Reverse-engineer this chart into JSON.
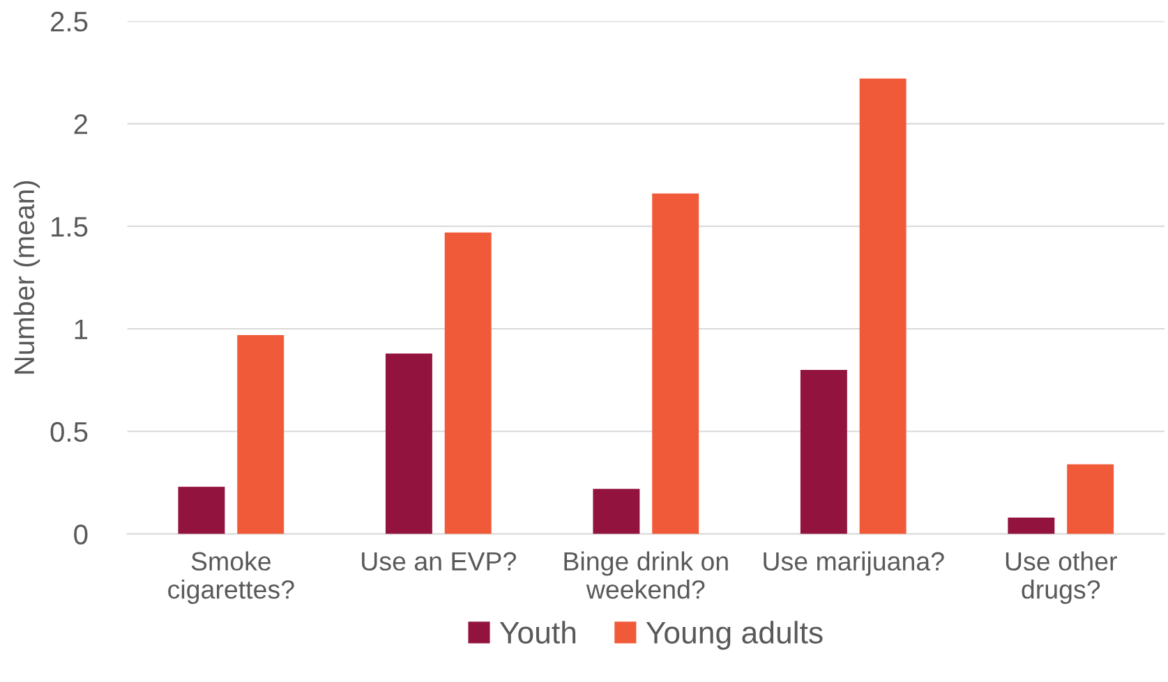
{
  "chart_data": {
    "type": "bar",
    "ylabel": "Number (mean)",
    "categories": [
      "Smoke\ncigarettes?",
      "Use an EVP?",
      "Binge drink on\nweekend?",
      "Use marijuana?",
      "Use other\ndrugs?"
    ],
    "series": [
      {
        "name": "Youth",
        "color": "#93133f",
        "values": [
          0.23,
          0.88,
          0.22,
          0.8,
          0.08
        ]
      },
      {
        "name": "Young adults",
        "color": "#f15a38",
        "values": [
          0.97,
          1.47,
          1.66,
          2.22,
          0.34
        ]
      }
    ],
    "ylim": [
      0,
      2.5
    ],
    "yticks": [
      0,
      0.5,
      1,
      1.5,
      2,
      2.5
    ],
    "grid": "y",
    "legend": "bottom"
  }
}
